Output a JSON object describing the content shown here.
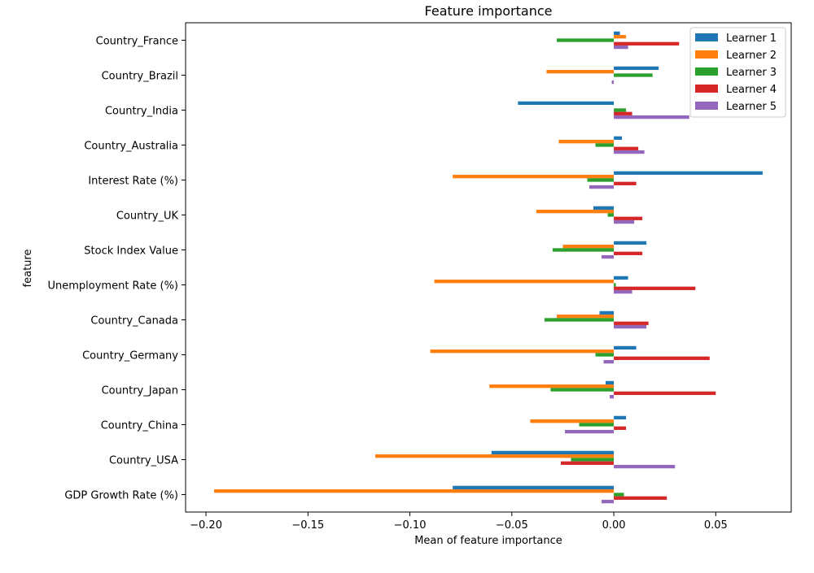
{
  "chart_data": {
    "type": "bar",
    "orientation": "horizontal",
    "title": "Feature importance",
    "xlabel": "Mean of feature importance",
    "ylabel": "feature",
    "xlim": [
      -0.21,
      0.087
    ],
    "xticks": [
      -0.2,
      -0.15,
      -0.1,
      -0.05,
      0.0,
      0.05
    ],
    "xtick_labels": [
      "−0.20",
      "−0.15",
      "−0.10",
      "−0.05",
      "0.00",
      "0.05"
    ],
    "grid": false,
    "legend_position": "top-right",
    "categories": [
      "GDP Growth Rate (%)",
      "Country_USA",
      "Country_China",
      "Country_Japan",
      "Country_Germany",
      "Country_Canada",
      "Unemployment Rate (%)",
      "Stock Index Value",
      "Country_UK",
      "Interest Rate (%)",
      "Country_Australia",
      "Country_India",
      "Country_Brazil",
      "Country_France"
    ],
    "series": [
      {
        "name": "Learner 1",
        "color": "#1f77b4",
        "values": [
          -0.079,
          -0.06,
          0.006,
          -0.004,
          0.011,
          -0.007,
          0.007,
          0.016,
          -0.01,
          0.073,
          0.004,
          -0.047,
          0.022,
          0.003
        ]
      },
      {
        "name": "Learner 2",
        "color": "#ff7f0e",
        "values": [
          -0.196,
          -0.117,
          -0.041,
          -0.061,
          -0.09,
          -0.028,
          -0.088,
          -0.025,
          -0.038,
          -0.079,
          -0.027,
          0.0,
          -0.033,
          0.006
        ]
      },
      {
        "name": "Learner 3",
        "color": "#2ca02c",
        "values": [
          0.005,
          -0.021,
          -0.017,
          -0.031,
          -0.009,
          -0.034,
          0.001,
          -0.03,
          -0.003,
          -0.013,
          -0.009,
          0.006,
          0.019,
          -0.028
        ]
      },
      {
        "name": "Learner 4",
        "color": "#d62728",
        "values": [
          0.026,
          -0.026,
          0.006,
          0.05,
          0.047,
          0.017,
          0.04,
          0.014,
          0.014,
          0.011,
          0.012,
          0.009,
          0.0,
          0.032
        ]
      },
      {
        "name": "Learner 5",
        "color": "#9467bd",
        "values": [
          -0.006,
          0.03,
          -0.024,
          -0.002,
          -0.005,
          0.016,
          0.009,
          -0.006,
          0.01,
          -0.012,
          0.015,
          0.037,
          -0.001,
          0.007
        ]
      }
    ]
  }
}
